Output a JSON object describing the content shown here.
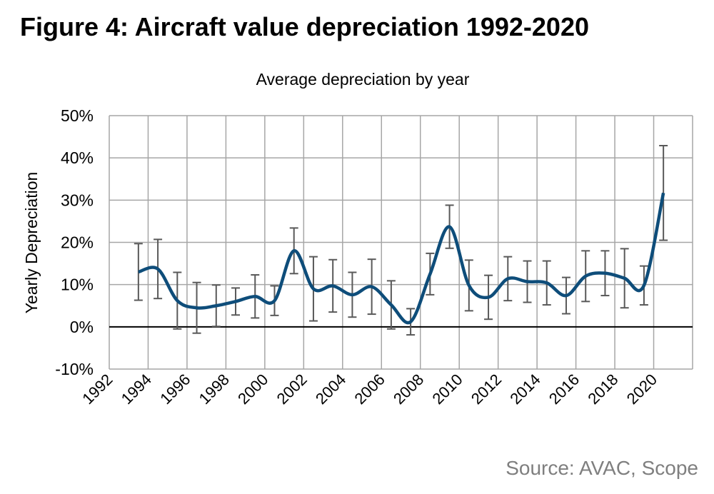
{
  "chart_data": {
    "type": "line",
    "title": "Figure 4: Aircraft value depreciation 1992-2020",
    "subtitle": "Average depreciation by year",
    "y_label": "Yearly Depreciation",
    "source": "Source: AVAC, Scope",
    "x": [
      1993.5,
      1994.5,
      1995.5,
      1996.5,
      1997.5,
      1998.5,
      1999.5,
      2000.5,
      2001.5,
      2002.5,
      2003.5,
      2004.5,
      2005.5,
      2006.5,
      2007.5,
      2008.5,
      2009.5,
      2010.5,
      2011.5,
      2012.5,
      2013.5,
      2014.5,
      2015.5,
      2016.5,
      2017.5,
      2018.5,
      2019.5,
      2020.5
    ],
    "series": [
      {
        "name": "Average depreciation",
        "color": "#0e4d7a",
        "values": [
          13,
          13.7,
          6.2,
          4.5,
          5,
          6,
          7.2,
          6.2,
          18,
          9,
          9.7,
          7.6,
          9.5,
          5.2,
          1.2,
          12.5,
          23.7,
          9.8,
          7,
          11.4,
          10.7,
          10.4,
          7.4,
          12,
          12.7,
          11.5,
          9.8,
          31.7
        ],
        "errors": [
          6.7,
          7,
          6.7,
          6,
          4.9,
          3.2,
          5.1,
          3.5,
          5.4,
          7.6,
          6.2,
          5.3,
          6.5,
          5.7,
          3.1,
          4.9,
          5.1,
          6,
          5.2,
          5.2,
          4.9,
          5.2,
          4.3,
          6,
          5.3,
          7,
          4.6,
          11.2
        ]
      }
    ],
    "error_color": "#595959",
    "xlim": [
      1992,
      2022
    ],
    "xticks": [
      1992,
      1994,
      1996,
      1998,
      2000,
      2002,
      2004,
      2006,
      2008,
      2010,
      2012,
      2014,
      2016,
      2018,
      2020
    ],
    "ylim": [
      -10,
      50
    ],
    "yticks": [
      {
        "value": -10,
        "label": "-10%"
      },
      {
        "value": 0,
        "label": "0%"
      },
      {
        "value": 10,
        "label": "10%"
      },
      {
        "value": 20,
        "label": "20%"
      },
      {
        "value": 30,
        "label": "30%"
      },
      {
        "value": 40,
        "label": "40%"
      },
      {
        "value": 50,
        "label": "50%"
      }
    ],
    "grid": true
  }
}
